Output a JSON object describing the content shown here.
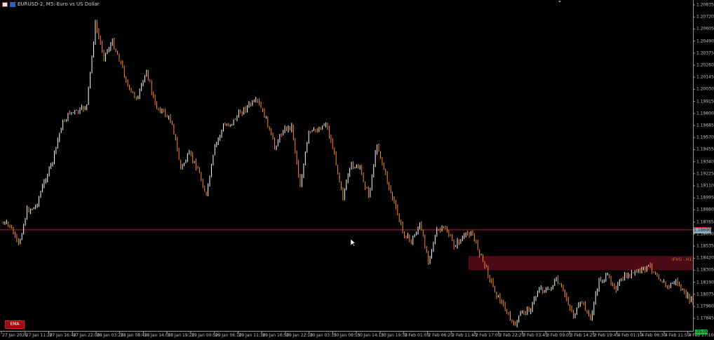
{
  "window": {
    "title": "EURUSD-2, M5:  Euro vs US Dollar"
  },
  "indicators": {
    "ema_button": "EMA",
    "fvg_label": "IFVG - H1"
  },
  "colors": {
    "background": "#000000",
    "bull": "#ffffff",
    "bear": "#ff8c1a",
    "price_line": "#c0202a",
    "fvg_zone": "#4a0a16",
    "timer": "#10c040"
  },
  "status": {
    "current_price": "1.18690",
    "bar_timer": "-35:00"
  },
  "chart_data": {
    "type": "line",
    "symbol": "EURUSD-2",
    "timeframe": "M5",
    "ylim": [
      1.1776,
      1.2092
    ],
    "y_ticks": [
      "1.20835",
      "1.20720",
      "1.20605",
      "1.20490",
      "1.20375",
      "1.20260",
      "1.20145",
      "1.20030",
      "1.19915",
      "1.19800",
      "1.19685",
      "1.19570",
      "1.19455",
      "1.19340",
      "1.19225",
      "1.19110",
      "1.18995",
      "1.18880",
      "1.18765",
      "1.18650",
      "1.18535",
      "1.18420",
      "1.18305",
      "1.18190",
      "1.18075",
      "1.17960",
      "1.17845"
    ],
    "x_ticks": [
      "27 Jan 2026",
      "27 Jan 11:20",
      "27 Jan 16:40",
      "27 Jan 22:00",
      "28 Jan 03:25",
      "28 Jan 08:45",
      "28 Jan 14:05",
      "28 Jan 19:25",
      "29 Jan 00:50",
      "29 Jan 06:10",
      "29 Jan 11:30",
      "29 Jan 16:50",
      "29 Jan 22:10",
      "30 Jan 03:35",
      "30 Jan 08:55",
      "30 Jan 14:15",
      "30 Jan 19:35",
      "2 Feb 01:00",
      "2 Feb 06:20",
      "2 Feb 11:40",
      "2 Feb 17:00",
      "2 Feb 22:20",
      "3 Feb 03:45",
      "3 Feb 09:05",
      "3 Feb 14:25",
      "3 Feb 19:45",
      "4 Feb 01:10",
      "4 Feb 06:30",
      "4 Feb 11:50",
      "4 Feb 17:10"
    ],
    "price_line": 1.1869,
    "fvg_zone": {
      "high": 1.1844,
      "low": 1.18305,
      "label": "IFVG - H1"
    },
    "closes": [
      1.18755,
      1.18728,
      1.1854,
      1.18875,
      1.18908,
      1.19142,
      1.19343,
      1.19678,
      1.19811,
      1.19811,
      1.19878,
      1.20648,
      1.20347,
      1.2048,
      1.2028,
      1.20012,
      1.19945,
      1.20213,
      1.19878,
      1.19811,
      1.19711,
      1.19276,
      1.1941,
      1.19276,
      1.19009,
      1.19477,
      1.19678,
      1.19711,
      1.19811,
      1.19878,
      1.19912,
      1.19745,
      1.19477,
      1.19644,
      1.19678,
      1.19109,
      1.19611,
      1.19644,
      1.19711,
      1.1941,
      1.19009,
      1.1931,
      1.19276,
      1.19009,
      1.1951,
      1.19209,
      1.18942,
      1.18674,
      1.18574,
      1.18741,
      1.18407,
      1.18674,
      1.18708,
      1.1854,
      1.18607,
      1.18674,
      1.18474,
      1.18273,
      1.18072,
      1.17938,
      1.17771,
      1.17905,
      1.17938,
      1.18139,
      1.18106,
      1.18206,
      1.18072,
      1.17871,
      1.18005,
      1.17838,
      1.18206,
      1.1824,
      1.18139,
      1.1824,
      1.18273,
      1.18307,
      1.1834,
      1.1824,
      1.18139,
      1.18206,
      1.18072,
      1.18005
    ]
  }
}
